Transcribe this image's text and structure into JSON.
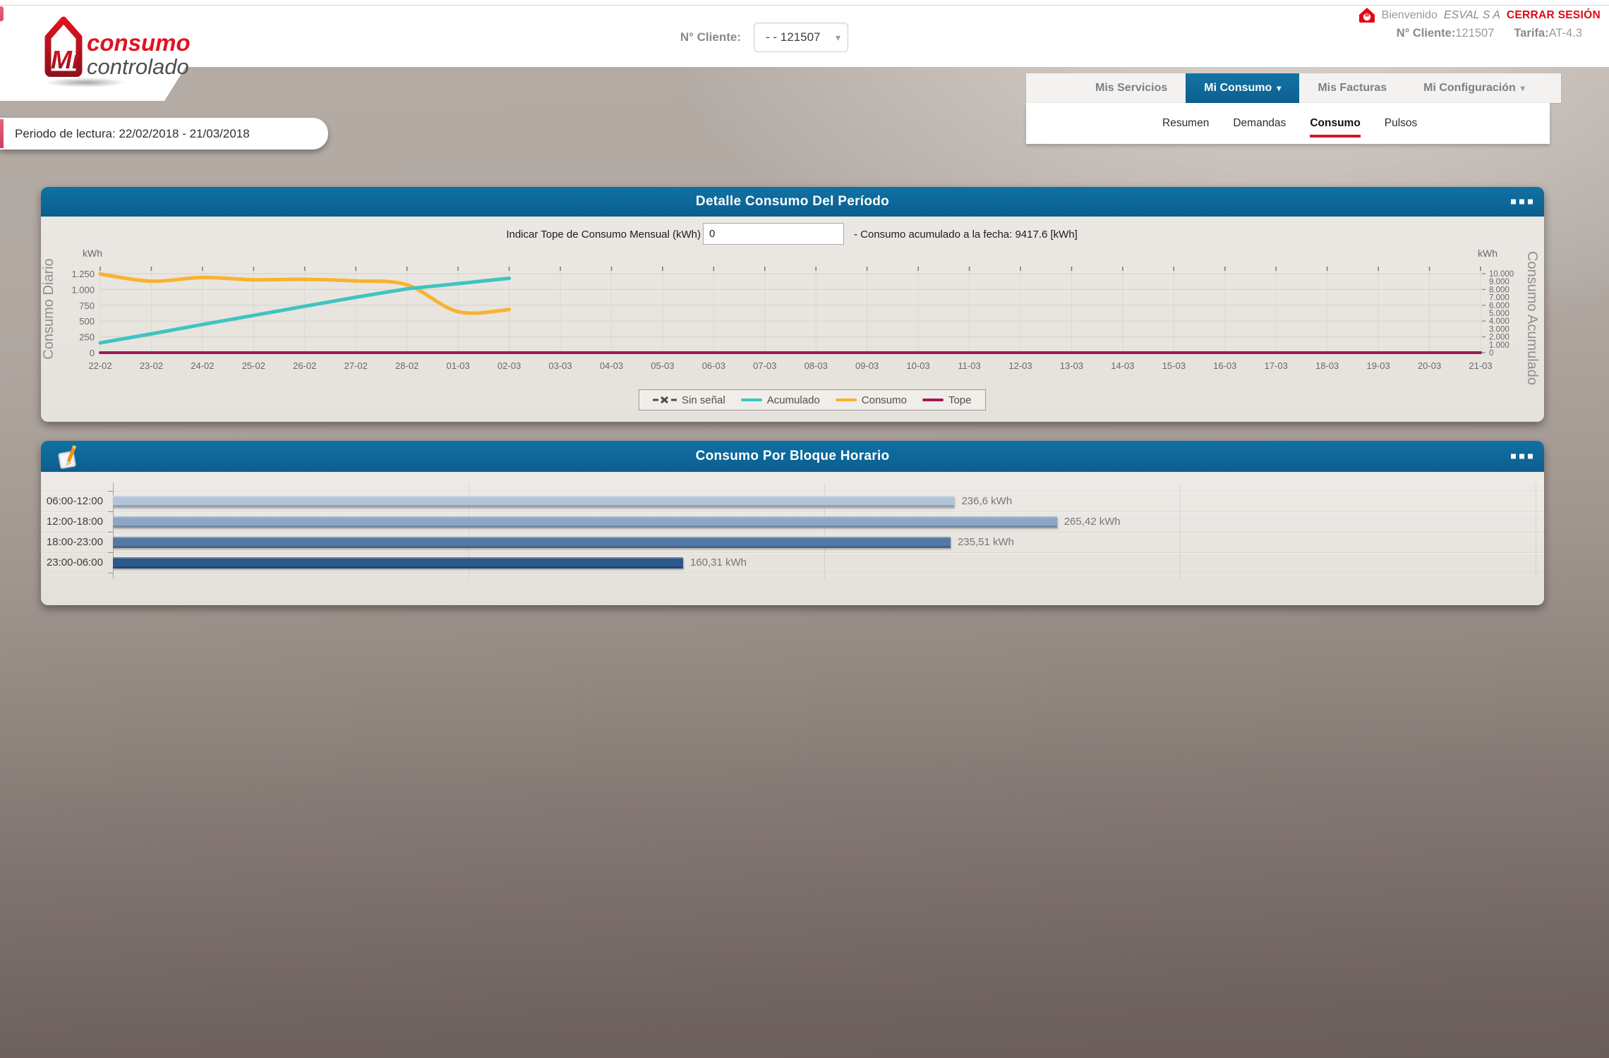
{
  "colors": {
    "header_blue": "#0c6394",
    "logout_red": "#e30613",
    "subnav_underline_red": "#cf1a1f",
    "logo_red": "#e01322"
  },
  "header": {
    "logo": {
      "mi": "Mi",
      "word1": "consumo",
      "word2": "controlado"
    },
    "client_selector": {
      "label": "N° Cliente:",
      "value": "- - 121507"
    },
    "welcome": {
      "greeting": "Bienvenido",
      "company": "ESVAL S A",
      "logout": "CERRAR SESIÓN",
      "client_label": "N° Cliente:",
      "client_value": "121507",
      "tariff_label": "Tarifa:",
      "tariff_value": "AT-4.3"
    }
  },
  "nav": {
    "tabs": [
      {
        "label": "Mis Servicios",
        "active": false
      },
      {
        "label": "Mi Consumo",
        "active": true
      },
      {
        "label": "Mis Facturas",
        "active": false
      },
      {
        "label": "Mi Configuración",
        "active": false
      }
    ],
    "subtabs": [
      {
        "label": "Resumen",
        "active": false
      },
      {
        "label": "Demandas",
        "active": false
      },
      {
        "label": "Consumo",
        "active": true
      },
      {
        "label": "Pulsos",
        "active": false
      }
    ]
  },
  "period_banner": "Periodo de lectura: 22/02/2018 - 21/03/2018",
  "panel_consumption": {
    "title": "Detalle Consumo Del Período",
    "tope_label": "Indicar Tope de Consumo Mensual (kWh)",
    "tope_value": "0",
    "accumulated_note": "- Consumo acumulado a la fecha: 9417.6 [kWh]"
  },
  "panel_blocks": {
    "title": "Consumo Por Bloque Horario"
  },
  "chart_data": [
    {
      "type": "line",
      "title": "Detalle Consumo Del Período",
      "x_categories": [
        "22-02",
        "23-02",
        "24-02",
        "25-02",
        "26-02",
        "27-02",
        "28-02",
        "01-03",
        "02-03",
        "03-03",
        "04-03",
        "05-03",
        "06-03",
        "07-03",
        "08-03",
        "09-03",
        "10-03",
        "11-03",
        "12-03",
        "13-03",
        "14-03",
        "15-03",
        "16-03",
        "17-03",
        "18-03",
        "19-03",
        "20-03",
        "21-03"
      ],
      "y_left": {
        "axis_label": "Consumo Diario",
        "unit": "kWh",
        "range": [
          0,
          1250
        ],
        "ticks": [
          "1.250",
          "1.000",
          "750",
          "500",
          "250",
          "0"
        ],
        "tick_values": [
          1250,
          1000,
          750,
          500,
          250,
          0
        ]
      },
      "y_right": {
        "axis_label": "Consumo Acumulado",
        "unit": "kWh",
        "range": [
          0,
          10000
        ],
        "ticks": [
          "10.000",
          "9.000",
          "8.000",
          "7.000",
          "6.000",
          "5.000",
          "4.000",
          "3.000",
          "2.000",
          "1.000",
          "0"
        ],
        "tick_values": [
          10000,
          9000,
          8000,
          7000,
          6000,
          5000,
          4000,
          3000,
          2000,
          1000,
          0
        ]
      },
      "legend_position": "bottom-center",
      "grid": true,
      "series": [
        {
          "name": "Sin señal",
          "color": "#4d4d4d",
          "marker": "x-dash",
          "axis": "left",
          "values": []
        },
        {
          "name": "Acumulado",
          "color": "#3fc4c0",
          "axis": "right",
          "values": [
            1244,
            2375,
            3565,
            4718,
            5878,
            7013,
            8087,
            8735,
            9417.6
          ]
        },
        {
          "name": "Consumo",
          "color": "#f8b32e",
          "axis": "left",
          "values": [
            1244,
            1131,
            1190,
            1153,
            1160,
            1135,
            1074,
            648,
            682.6
          ]
        },
        {
          "name": "Tope",
          "color": "#9c1c55",
          "axis": "left",
          "values": [
            0,
            0,
            0,
            0,
            0,
            0,
            0,
            0,
            0,
            0,
            0,
            0,
            0,
            0,
            0,
            0,
            0,
            0,
            0,
            0,
            0,
            0,
            0,
            0,
            0,
            0,
            0,
            0
          ]
        }
      ]
    },
    {
      "type": "bar",
      "orientation": "horizontal",
      "title": "Consumo Por Bloque Horario",
      "categories": [
        "06:00-12:00",
        "12:00-18:00",
        "18:00-23:00",
        "23:00-06:00"
      ],
      "values": [
        236.6,
        265.42,
        235.51,
        160.31
      ],
      "value_labels": [
        "236,6 kWh",
        "265,42 kWh",
        "235,51 kWh",
        "160,31 kWh"
      ],
      "bar_colors": [
        "#b4c4d8",
        "#8ca7c5",
        "#527aa4",
        "#2c598c"
      ],
      "unit": "kWh",
      "xlim": [
        0,
        400
      ],
      "grid_step": 100
    }
  ]
}
